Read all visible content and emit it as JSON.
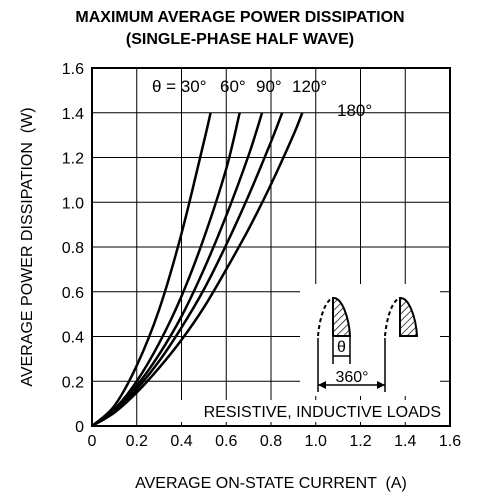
{
  "chart_data": {
    "type": "line",
    "title": "MAXIMUM AVERAGE POWER DISSIPATION",
    "subtitle": "(SINGLE-PHASE HALF WAVE)",
    "xlabel": "AVERAGE ON-STATE CURRENT  (A)",
    "ylabel": "AVERAGE POWER DISSIPATION  (W)",
    "xlim": [
      0,
      1.6
    ],
    "ylim": [
      0,
      1.6
    ],
    "x_ticks": [
      "0",
      "0.2",
      "0.4",
      "0.6",
      "0.8",
      "1.0",
      "1.2",
      "1.4",
      "1.6"
    ],
    "y_ticks": [
      "0",
      "0.2",
      "0.4",
      "0.6",
      "0.8",
      "1.0",
      "1.2",
      "1.4",
      "1.6"
    ],
    "grid": true,
    "series_label_prefix": "θ = ",
    "series": [
      {
        "name": "30°",
        "x": [
          0,
          0.1,
          0.2,
          0.3,
          0.4,
          0.5,
          0.53
        ],
        "y": [
          0,
          0.09,
          0.27,
          0.52,
          0.86,
          1.27,
          1.4
        ]
      },
      {
        "name": "60°",
        "x": [
          0,
          0.1,
          0.2,
          0.3,
          0.4,
          0.5,
          0.6,
          0.66
        ],
        "y": [
          0,
          0.075,
          0.2,
          0.37,
          0.58,
          0.84,
          1.15,
          1.4
        ]
      },
      {
        "name": "90°",
        "x": [
          0,
          0.1,
          0.2,
          0.3,
          0.4,
          0.5,
          0.6,
          0.7,
          0.76
        ],
        "y": [
          0,
          0.07,
          0.18,
          0.32,
          0.49,
          0.7,
          0.94,
          1.21,
          1.4
        ]
      },
      {
        "name": "120°",
        "x": [
          0,
          0.1,
          0.2,
          0.3,
          0.4,
          0.5,
          0.6,
          0.7,
          0.8,
          0.85
        ],
        "y": [
          0,
          0.065,
          0.165,
          0.29,
          0.44,
          0.61,
          0.81,
          1.03,
          1.27,
          1.4
        ]
      },
      {
        "name": "180°",
        "x": [
          0,
          0.1,
          0.2,
          0.3,
          0.4,
          0.5,
          0.6,
          0.7,
          0.8,
          0.9,
          0.94
        ],
        "y": [
          0,
          0.06,
          0.15,
          0.26,
          0.385,
          0.53,
          0.7,
          0.88,
          1.08,
          1.3,
          1.4
        ]
      }
    ],
    "annotation": "RESISTIVE, INDUCTIVE LOADS",
    "inset": {
      "conduction_label": "θ",
      "period_label": "360°"
    }
  }
}
